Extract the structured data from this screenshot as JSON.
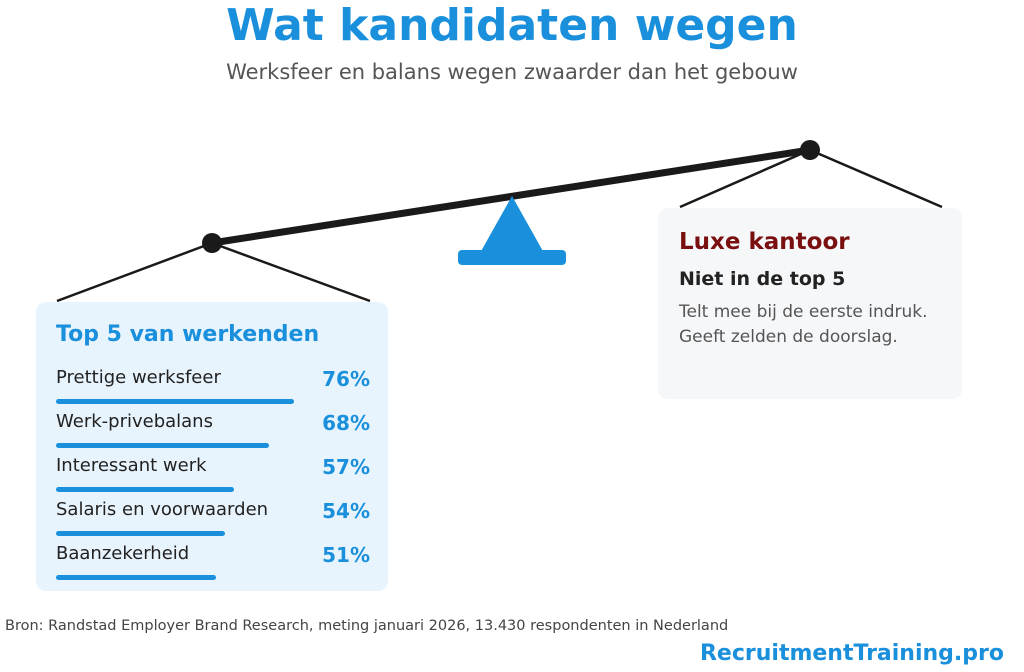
{
  "header": {
    "title": "Wat kandidaten wegen",
    "subtitle": "Werksfeer en balans wegen zwaarder dan het gebouw"
  },
  "chart_data": {
    "type": "bar",
    "title": "Top 5 van werkenden",
    "categories": [
      "Prettige werksfeer",
      "Werk-privebalans",
      "Interessant werk",
      "Salaris en voorwaarden",
      "Baanzekerheid"
    ],
    "values": [
      76,
      68,
      57,
      54,
      51
    ],
    "value_labels": [
      "76%",
      "68%",
      "57%",
      "54%",
      "51%"
    ],
    "unit": "%",
    "xlim": [
      0,
      100
    ],
    "color": "#1a90dc"
  },
  "counterweight": {
    "title": "Luxe kantoor",
    "subtitle": "Niet in de top 5",
    "text": "Telt mee bij de eerste indruk. Geeft zelden de doorslag."
  },
  "footer": {
    "source": "Bron: Randstad Employer Brand Research, meting januari 2026, 13.430 respondenten in Nederland",
    "brand": "RecruitmentTraining.pro"
  },
  "colors": {
    "accent": "#1a90dc",
    "counter_title": "#7a0f0f",
    "beam": "#1a1a1a"
  }
}
